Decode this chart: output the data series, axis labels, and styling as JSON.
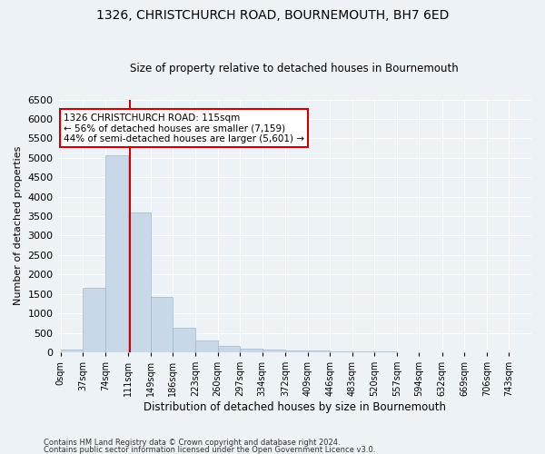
{
  "title": "1326, CHRISTCHURCH ROAD, BOURNEMOUTH, BH7 6ED",
  "subtitle": "Size of property relative to detached houses in Bournemouth",
  "xlabel": "Distribution of detached houses by size in Bournemouth",
  "ylabel": "Number of detached properties",
  "footnote1": "Contains HM Land Registry data © Crown copyright and database right 2024.",
  "footnote2": "Contains public sector information licensed under the Open Government Licence v3.0.",
  "bin_edges": [
    0,
    37,
    74,
    111,
    149,
    186,
    223,
    260,
    297,
    334,
    372,
    409,
    446,
    483,
    520,
    557,
    594,
    632,
    669,
    706,
    743
  ],
  "bar_heights": [
    75,
    1650,
    5075,
    3600,
    1425,
    625,
    300,
    150,
    100,
    75,
    50,
    50,
    30,
    15,
    10,
    5,
    5,
    3,
    2,
    2
  ],
  "bar_color": "#c8d8e8",
  "bar_edgecolor": "#a0b8cc",
  "property_size": 115,
  "vline_color": "#cc0000",
  "annotation_line1": "1326 CHRISTCHURCH ROAD: 115sqm",
  "annotation_line2": "← 56% of detached houses are smaller (7,159)",
  "annotation_line3": "44% of semi-detached houses are larger (5,601) →",
  "annotation_box_color": "#cc0000",
  "ylim": [
    0,
    6500
  ],
  "yticks": [
    0,
    500,
    1000,
    1500,
    2000,
    2500,
    3000,
    3500,
    4000,
    4500,
    5000,
    5500,
    6000,
    6500
  ],
  "background_color": "#edf2f7",
  "grid_color": "#ffffff",
  "title_fontsize": 10,
  "subtitle_fontsize": 8.5
}
